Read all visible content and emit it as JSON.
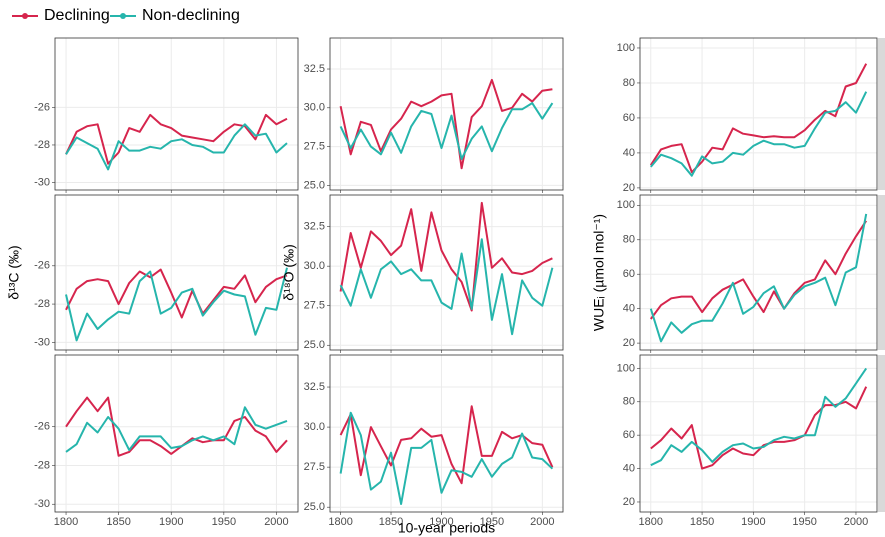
{
  "chart_data": [
    {
      "type": "line",
      "x": [
        1800,
        1810,
        1820,
        1830,
        1840,
        1850,
        1860,
        1870,
        1880,
        1890,
        1900,
        1910,
        1920,
        1930,
        1940,
        1950,
        1960,
        1970,
        1980,
        1990,
        2000,
        2010
      ],
      "xlim": [
        1789.5,
        2020.5
      ],
      "xticks": [
        1800,
        1850,
        1900,
        1950,
        2000
      ],
      "ylim": [
        -30.4,
        -22.3
      ],
      "yticks": [
        -30,
        -28,
        -26
      ],
      "grid": true,
      "series": [
        {
          "name": "Declining",
          "color": "#d6254d",
          "values": [
            -28.5,
            -27.3,
            -27.0,
            -26.9,
            -29.0,
            -28.4,
            -27.1,
            -27.3,
            -26.4,
            -26.9,
            -27.1,
            -27.5,
            -27.6,
            -27.7,
            -27.8,
            -27.3,
            -26.9,
            -27.0,
            -27.7,
            -26.4,
            -26.9,
            -26.6
          ]
        },
        {
          "name": "Non-declining",
          "color": "#26b5ac",
          "values": [
            -28.5,
            -27.6,
            -27.9,
            -28.2,
            -29.3,
            -27.8,
            -28.3,
            -28.3,
            -28.1,
            -28.2,
            -27.8,
            -27.7,
            -28.0,
            -28.1,
            -28.4,
            -28.4,
            -27.5,
            -26.9,
            -27.5,
            -27.4,
            -28.4,
            -27.9
          ]
        }
      ]
    },
    {
      "type": "line",
      "x": [
        1800,
        1810,
        1820,
        1830,
        1840,
        1850,
        1860,
        1870,
        1880,
        1890,
        1900,
        1910,
        1920,
        1930,
        1940,
        1950,
        1960,
        1970,
        1980,
        1990,
        2000,
        2010
      ],
      "xlim": [
        1789.5,
        2020.5
      ],
      "xticks": [
        1800,
        1850,
        1900,
        1950,
        2000
      ],
      "ylim": [
        24.7,
        34.5
      ],
      "yticks": [
        {
          "value": 25,
          "label": "25.0"
        },
        27.5,
        {
          "value": 30,
          "label": "30.0"
        },
        32.5
      ],
      "grid": true,
      "series": [
        {
          "name": "Declining",
          "color": "#d6254d",
          "values": [
            30.1,
            27.0,
            29.1,
            28.9,
            27.2,
            28.6,
            29.3,
            30.4,
            30.1,
            30.4,
            30.8,
            30.9,
            26.1,
            29.4,
            30.1,
            31.8,
            29.8,
            30.0,
            30.9,
            30.4,
            31.1,
            31.2
          ]
        },
        {
          "name": "Non-declining",
          "color": "#26b5ac",
          "values": [
            28.8,
            27.4,
            28.6,
            27.5,
            27.0,
            28.4,
            27.1,
            28.8,
            29.8,
            29.6,
            27.4,
            29.5,
            26.7,
            28.0,
            28.8,
            27.2,
            28.7,
            29.9,
            29.9,
            30.3,
            29.3,
            30.3
          ]
        }
      ]
    },
    {
      "type": "line",
      "x": [
        1800,
        1810,
        1820,
        1830,
        1840,
        1850,
        1860,
        1870,
        1880,
        1890,
        1900,
        1910,
        1920,
        1930,
        1940,
        1950,
        1960,
        1970,
        1980,
        1990,
        2000,
        2010
      ],
      "xlim": [
        1789.5,
        2020.5
      ],
      "xticks": [
        1800,
        1850,
        1900,
        1950,
        2000
      ],
      "ylim": [
        18.8,
        105.7
      ],
      "yticks": [
        20,
        40,
        60,
        80,
        100
      ],
      "grid": true,
      "series": [
        {
          "name": "Declining",
          "color": "#d6254d",
          "values": [
            33,
            42,
            44,
            45,
            29,
            35,
            43,
            42,
            54,
            51,
            50,
            49,
            49.5,
            49,
            49,
            53,
            59,
            64,
            61,
            78,
            80,
            91
          ]
        },
        {
          "name": "Non-declining",
          "color": "#26b5ac",
          "values": [
            32,
            39,
            37,
            34,
            27,
            38,
            34,
            35,
            40,
            39,
            44,
            47,
            45,
            45,
            43,
            44,
            54,
            63,
            64,
            69,
            63,
            75
          ]
        }
      ]
    },
    {
      "type": "line",
      "ylabel": "δ¹³C (‰)",
      "x": [
        1800,
        1810,
        1820,
        1830,
        1840,
        1850,
        1860,
        1870,
        1880,
        1890,
        1900,
        1910,
        1920,
        1930,
        1940,
        1950,
        1960,
        1970,
        1980,
        1990,
        2000,
        2010
      ],
      "xlim": [
        1789.5,
        2020.5
      ],
      "xticks": [
        1800,
        1850,
        1900,
        1950,
        2000
      ],
      "ylim": [
        -30.4,
        -22.3
      ],
      "yticks": [
        -30,
        -28,
        -26
      ],
      "grid": true,
      "series": [
        {
          "name": "Declining",
          "color": "#d6254d",
          "values": [
            -28.3,
            -27.2,
            -26.8,
            -26.7,
            -26.8,
            -28.0,
            -26.9,
            -26.3,
            -26.6,
            -26.2,
            -27.4,
            -28.7,
            -27.3,
            -28.5,
            -27.8,
            -27.1,
            -27.2,
            -26.5,
            -27.9,
            -27.1,
            -26.7,
            -26.5
          ]
        },
        {
          "name": "Non-declining",
          "color": "#26b5ac",
          "values": [
            -27.5,
            -29.9,
            -28.5,
            -29.3,
            -28.8,
            -28.4,
            -28.5,
            -26.8,
            -26.3,
            -28.5,
            -28.2,
            -27.4,
            -27.2,
            -28.6,
            -27.9,
            -27.3,
            -27.5,
            -27.6,
            -29.6,
            -28.2,
            -28.3,
            -26.1
          ]
        }
      ]
    },
    {
      "type": "line",
      "ylabel": "δ¹⁸O (‰)",
      "x": [
        1800,
        1810,
        1820,
        1830,
        1840,
        1850,
        1860,
        1870,
        1880,
        1890,
        1900,
        1910,
        1920,
        1930,
        1940,
        1950,
        1960,
        1970,
        1980,
        1990,
        2000,
        2010
      ],
      "xlim": [
        1789.5,
        2020.5
      ],
      "xticks": [
        1800,
        1850,
        1900,
        1950,
        2000
      ],
      "ylim": [
        24.7,
        34.5
      ],
      "yticks": [
        {
          "value": 25,
          "label": "25.0"
        },
        27.5,
        {
          "value": 30,
          "label": "30.0"
        },
        32.5
      ],
      "grid": true,
      "series": [
        {
          "name": "Declining",
          "color": "#d6254d",
          "values": [
            28.4,
            32.1,
            29.9,
            32.2,
            31.6,
            30.7,
            31.3,
            33.6,
            29.7,
            33.4,
            31.0,
            29.8,
            29.0,
            27.2,
            34.0,
            29.9,
            30.5,
            29.6,
            29.5,
            29.7,
            30.2,
            30.5
          ]
        },
        {
          "name": "Non-declining",
          "color": "#26b5ac",
          "values": [
            28.8,
            27.5,
            29.8,
            28.0,
            29.8,
            30.3,
            29.5,
            29.8,
            29.1,
            29.1,
            27.7,
            27.3,
            30.8,
            27.3,
            31.7,
            26.6,
            29.5,
            25.7,
            29.1,
            28.0,
            27.5,
            29.9
          ]
        }
      ]
    },
    {
      "type": "line",
      "ylabel": "WUEᵢ (µmol mol⁻¹)",
      "x": [
        1800,
        1810,
        1820,
        1830,
        1840,
        1850,
        1860,
        1870,
        1880,
        1890,
        1900,
        1910,
        1920,
        1930,
        1940,
        1950,
        1960,
        1970,
        1980,
        1990,
        2000,
        2010
      ],
      "xlim": [
        1789.5,
        2020.5
      ],
      "xticks": [
        1800,
        1850,
        1900,
        1950,
        2000
      ],
      "ylim": [
        16,
        106
      ],
      "yticks": [
        20,
        40,
        60,
        80,
        100
      ],
      "grid": true,
      "series": [
        {
          "name": "Declining",
          "color": "#d6254d",
          "values": [
            34,
            42,
            46,
            47,
            47,
            38,
            46,
            51,
            54,
            57,
            47,
            38,
            50,
            40,
            49,
            55,
            57,
            68,
            60,
            72,
            82,
            91
          ]
        },
        {
          "name": "Non-declining",
          "color": "#26b5ac",
          "values": [
            40,
            21,
            32,
            26,
            31,
            33,
            33,
            43,
            55,
            37,
            41,
            49,
            53,
            40,
            48,
            53,
            55,
            58,
            42,
            61,
            64,
            95
          ]
        }
      ]
    },
    {
      "type": "line",
      "x": [
        1800,
        1810,
        1820,
        1830,
        1840,
        1850,
        1860,
        1870,
        1880,
        1890,
        1900,
        1910,
        1920,
        1930,
        1940,
        1950,
        1960,
        1970,
        1980,
        1990,
        2000,
        2010
      ],
      "xlim": [
        1789.5,
        2020.5
      ],
      "xticks": [
        1800,
        1850,
        1900,
        1950,
        2000
      ],
      "ylim": [
        -30.4,
        -22.3
      ],
      "yticks": [
        -30,
        -28,
        -26
      ],
      "grid": true,
      "series": [
        {
          "name": "Declining",
          "color": "#d6254d",
          "values": [
            -26.0,
            -25.2,
            -24.5,
            -25.2,
            -24.5,
            -27.5,
            -27.3,
            -26.7,
            -26.7,
            -27.0,
            -27.4,
            -27.0,
            -26.6,
            -26.8,
            -26.7,
            -26.7,
            -25.7,
            -25.5,
            -26.2,
            -26.5,
            -27.3,
            -26.7
          ]
        },
        {
          "name": "Non-declining",
          "color": "#26b5ac",
          "values": [
            -27.3,
            -26.9,
            -25.8,
            -26.3,
            -25.5,
            -26.1,
            -27.2,
            -26.5,
            -26.5,
            -26.5,
            -27.1,
            -27.0,
            -26.7,
            -26.5,
            -26.7,
            -26.5,
            -26.9,
            -25.0,
            -25.9,
            -26.1,
            -25.9,
            -25.7
          ]
        }
      ]
    },
    {
      "type": "line",
      "xlabel": "10-year periods",
      "x": [
        1800,
        1810,
        1820,
        1830,
        1840,
        1850,
        1860,
        1870,
        1880,
        1890,
        1900,
        1910,
        1920,
        1930,
        1940,
        1950,
        1960,
        1970,
        1980,
        1990,
        2000,
        2010
      ],
      "xlim": [
        1789.5,
        2020.5
      ],
      "xticks": [
        1800,
        1850,
        1900,
        1950,
        2000
      ],
      "ylim": [
        24.7,
        34.5
      ],
      "yticks": [
        {
          "value": 25,
          "label": "25.0"
        },
        27.5,
        {
          "value": 30,
          "label": "30.0"
        },
        32.5
      ],
      "grid": true,
      "series": [
        {
          "name": "Declining",
          "color": "#d6254d",
          "values": [
            29.5,
            30.8,
            27.0,
            30.0,
            28.8,
            27.6,
            29.2,
            29.3,
            29.9,
            29.4,
            29.5,
            27.7,
            26.5,
            31.3,
            28.2,
            28.2,
            29.7,
            29.3,
            29.5,
            29.0,
            28.9,
            27.5
          ]
        },
        {
          "name": "Non-declining",
          "color": "#26b5ac",
          "values": [
            27.1,
            30.9,
            29.5,
            26.1,
            26.6,
            28.4,
            25.2,
            28.7,
            28.7,
            29.2,
            25.9,
            27.3,
            27.2,
            26.9,
            28.0,
            26.9,
            27.7,
            28.1,
            29.6,
            28.1,
            28.0,
            27.4
          ]
        }
      ]
    },
    {
      "type": "line",
      "x": [
        1800,
        1810,
        1820,
        1830,
        1840,
        1850,
        1860,
        1870,
        1880,
        1890,
        1900,
        1910,
        1920,
        1930,
        1940,
        1950,
        1960,
        1970,
        1980,
        1990,
        2000,
        2010
      ],
      "xlim": [
        1789.5,
        2020.5
      ],
      "xticks": [
        1800,
        1850,
        1900,
        1950,
        2000
      ],
      "ylim": [
        14,
        108
      ],
      "yticks": [
        20,
        40,
        60,
        80,
        100
      ],
      "grid": true,
      "series": [
        {
          "name": "Declining",
          "color": "#d6254d",
          "values": [
            52,
            57,
            64,
            58,
            66,
            40,
            42,
            48,
            52,
            49,
            48,
            54,
            56,
            56,
            57,
            60,
            72,
            78,
            78,
            80,
            76,
            89
          ]
        },
        {
          "name": "Non-declining",
          "color": "#26b5ac",
          "values": [
            42,
            45,
            54,
            50,
            56,
            51,
            44,
            50,
            54,
            55,
            52,
            53,
            57,
            59,
            58,
            60,
            60,
            83,
            77,
            82,
            91,
            100
          ]
        }
      ]
    }
  ]
}
